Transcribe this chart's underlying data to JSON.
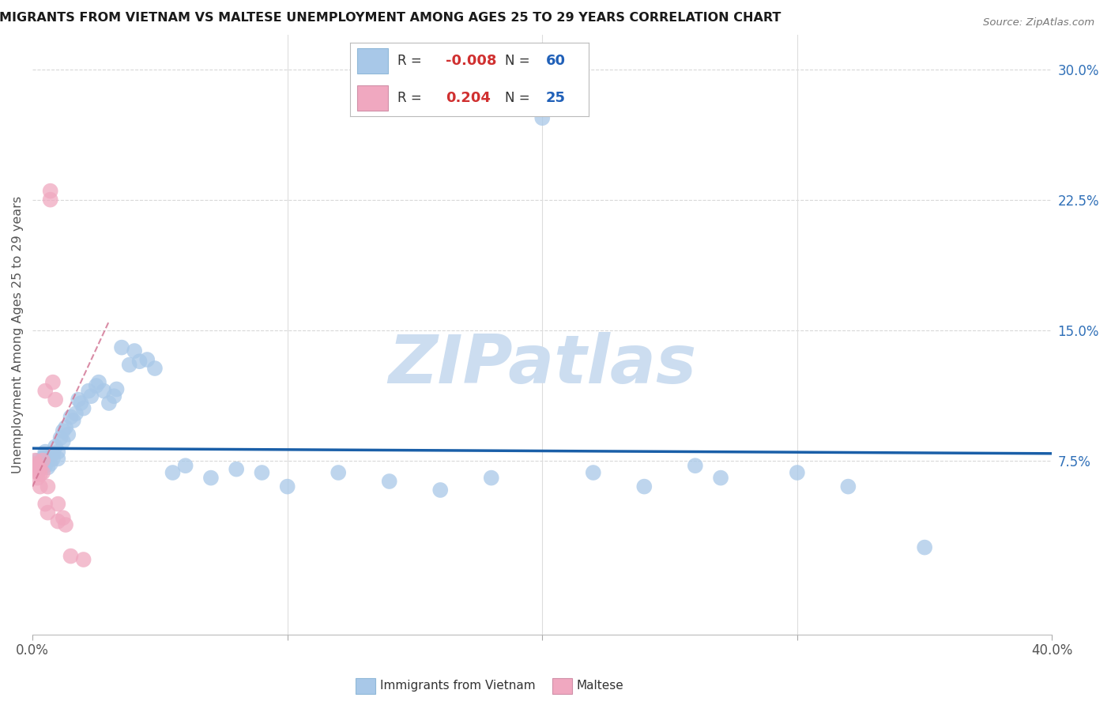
{
  "title": "IMMIGRANTS FROM VIETNAM VS MALTESE UNEMPLOYMENT AMONG AGES 25 TO 29 YEARS CORRELATION CHART",
  "source": "Source: ZipAtlas.com",
  "ylabel": "Unemployment Among Ages 25 to 29 years",
  "xlim": [
    0.0,
    0.4
  ],
  "ylim": [
    -0.025,
    0.32
  ],
  "xticks": [
    0.0,
    0.1,
    0.2,
    0.3,
    0.4
  ],
  "xticklabels": [
    "0.0%",
    "",
    "",
    "",
    "40.0%"
  ],
  "yticks": [
    0.075,
    0.15,
    0.225,
    0.3
  ],
  "yticklabels": [
    "7.5%",
    "15.0%",
    "22.5%",
    "30.0%"
  ],
  "legend_r_blue": "-0.008",
  "legend_n_blue": "60",
  "legend_r_pink": "0.204",
  "legend_n_pink": "25",
  "blue_color": "#a8c8e8",
  "pink_color": "#f0a8c0",
  "trendline_blue_color": "#1a5fa8",
  "trendline_pink_color": "#d07090",
  "background_color": "#ffffff",
  "grid_color": "#d8d8d8",
  "title_color": "#1a1a1a",
  "axis_label_color": "#555555",
  "tick_color_right": "#3070b8",
  "tick_color_bottom": "#555555",
  "watermark_color": "#ccddf0",
  "blue_scatter": [
    [
      0.002,
      0.075
    ],
    [
      0.003,
      0.073
    ],
    [
      0.003,
      0.071
    ],
    [
      0.004,
      0.076
    ],
    [
      0.004,
      0.074
    ],
    [
      0.005,
      0.08
    ],
    [
      0.005,
      0.078
    ],
    [
      0.005,
      0.072
    ],
    [
      0.006,
      0.075
    ],
    [
      0.006,
      0.071
    ],
    [
      0.007,
      0.077
    ],
    [
      0.007,
      0.073
    ],
    [
      0.008,
      0.079
    ],
    [
      0.008,
      0.076
    ],
    [
      0.009,
      0.083
    ],
    [
      0.01,
      0.08
    ],
    [
      0.01,
      0.076
    ],
    [
      0.011,
      0.088
    ],
    [
      0.012,
      0.086
    ],
    [
      0.012,
      0.092
    ],
    [
      0.013,
      0.094
    ],
    [
      0.014,
      0.09
    ],
    [
      0.015,
      0.1
    ],
    [
      0.016,
      0.098
    ],
    [
      0.017,
      0.102
    ],
    [
      0.018,
      0.11
    ],
    [
      0.019,
      0.108
    ],
    [
      0.02,
      0.105
    ],
    [
      0.022,
      0.115
    ],
    [
      0.023,
      0.112
    ],
    [
      0.025,
      0.118
    ],
    [
      0.026,
      0.12
    ],
    [
      0.028,
      0.115
    ],
    [
      0.03,
      0.108
    ],
    [
      0.032,
      0.112
    ],
    [
      0.033,
      0.116
    ],
    [
      0.035,
      0.14
    ],
    [
      0.038,
      0.13
    ],
    [
      0.04,
      0.138
    ],
    [
      0.042,
      0.132
    ],
    [
      0.045,
      0.133
    ],
    [
      0.048,
      0.128
    ],
    [
      0.055,
      0.068
    ],
    [
      0.06,
      0.072
    ],
    [
      0.07,
      0.065
    ],
    [
      0.08,
      0.07
    ],
    [
      0.09,
      0.068
    ],
    [
      0.1,
      0.06
    ],
    [
      0.12,
      0.068
    ],
    [
      0.14,
      0.063
    ],
    [
      0.16,
      0.058
    ],
    [
      0.18,
      0.065
    ],
    [
      0.2,
      0.272
    ],
    [
      0.22,
      0.068
    ],
    [
      0.24,
      0.06
    ],
    [
      0.26,
      0.072
    ],
    [
      0.27,
      0.065
    ],
    [
      0.3,
      0.068
    ],
    [
      0.32,
      0.06
    ],
    [
      0.35,
      0.025
    ]
  ],
  "pink_scatter": [
    [
      0.001,
      0.075
    ],
    [
      0.001,
      0.073
    ],
    [
      0.002,
      0.072
    ],
    [
      0.002,
      0.07
    ],
    [
      0.002,
      0.068
    ],
    [
      0.002,
      0.065
    ],
    [
      0.003,
      0.07
    ],
    [
      0.003,
      0.067
    ],
    [
      0.003,
      0.06
    ],
    [
      0.004,
      0.075
    ],
    [
      0.004,
      0.068
    ],
    [
      0.005,
      0.115
    ],
    [
      0.005,
      0.05
    ],
    [
      0.006,
      0.045
    ],
    [
      0.006,
      0.06
    ],
    [
      0.007,
      0.23
    ],
    [
      0.007,
      0.225
    ],
    [
      0.008,
      0.12
    ],
    [
      0.009,
      0.11
    ],
    [
      0.01,
      0.05
    ],
    [
      0.01,
      0.04
    ],
    [
      0.012,
      0.042
    ],
    [
      0.013,
      0.038
    ],
    [
      0.015,
      0.02
    ],
    [
      0.02,
      0.018
    ]
  ],
  "blue_trendline_x": [
    0.0,
    0.4
  ],
  "blue_trendline_y": [
    0.082,
    0.079
  ],
  "pink_trendline_x": [
    0.0,
    0.03
  ],
  "pink_trendline_y": [
    0.06,
    0.155
  ]
}
